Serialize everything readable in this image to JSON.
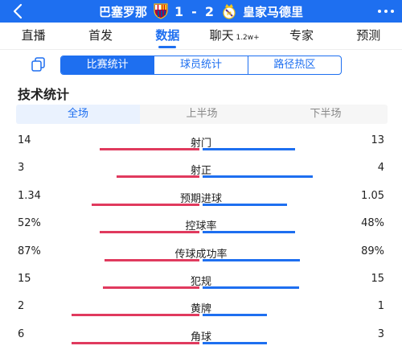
{
  "header": {
    "home_team": "巴塞罗那",
    "away_team": "皇家马德里",
    "home_score": "1",
    "separator": "-",
    "away_score": "2",
    "colors": {
      "background": "#1e6ff0",
      "text": "#ffffff"
    }
  },
  "nav": {
    "tabs": [
      {
        "label": "直播",
        "sub": ""
      },
      {
        "label": "首发",
        "sub": ""
      },
      {
        "label": "数据",
        "sub": ""
      },
      {
        "label": "聊天",
        "sub": "1.2w+"
      },
      {
        "label": "专家",
        "sub": ""
      },
      {
        "label": "预测",
        "sub": ""
      }
    ],
    "active_index": 2
  },
  "subtabs": {
    "items": [
      "比赛统计",
      "球员统计",
      "路径热区"
    ],
    "active_index": 0
  },
  "section_title": "技术统计",
  "period_tabs": {
    "items": [
      "全场",
      "上半场",
      "下半场"
    ],
    "active_index": 0
  },
  "stats": [
    {
      "label": "射门",
      "home": "14",
      "away": "13",
      "home_share": 0.518,
      "away_share": 0.482
    },
    {
      "label": "射正",
      "home": "3",
      "away": "4",
      "home_share": 0.429,
      "away_share": 0.571
    },
    {
      "label": "预期进球",
      "home": "1.34",
      "away": "1.05",
      "home_share": 0.561,
      "away_share": 0.439
    },
    {
      "label": "控球率",
      "home": "52%",
      "away": "48%",
      "home_share": 0.52,
      "away_share": 0.48
    },
    {
      "label": "传球成功率",
      "home": "87%",
      "away": "89%",
      "home_share": 0.494,
      "away_share": 0.506
    },
    {
      "label": "犯规",
      "home": "15",
      "away": "15",
      "home_share": 0.5,
      "away_share": 0.5
    },
    {
      "label": "黄牌",
      "home": "2",
      "away": "1",
      "home_share": 0.667,
      "away_share": 0.333
    },
    {
      "label": "角球",
      "home": "6",
      "away": "3",
      "home_share": 0.667,
      "away_share": 0.333
    }
  ],
  "colors": {
    "home_bar": "#e03a5e",
    "away_bar": "#1e6ff0",
    "accent": "#1e6ff0"
  }
}
